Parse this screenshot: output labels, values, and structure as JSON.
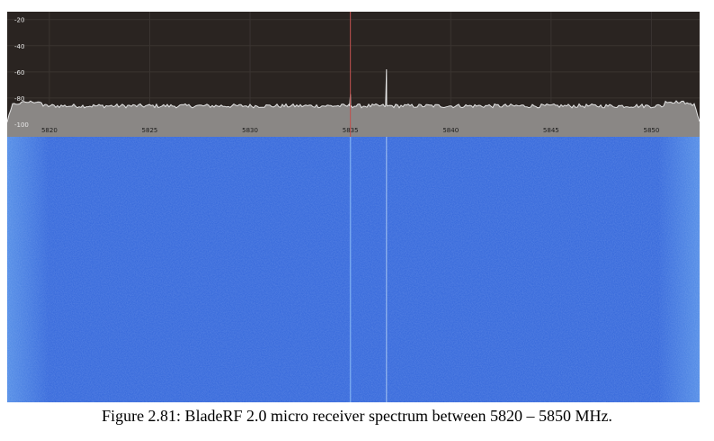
{
  "caption": "Figure 2.81: BladeRF 2.0 micro receiver spectrum between 5820 – 5850 MHz.",
  "spectrum": {
    "db_axis": {
      "ticks": [
        "-20",
        "-40",
        "-60",
        "-80",
        "-100"
      ],
      "range": [
        -100,
        -14
      ]
    },
    "freq_axis": {
      "ticks": [
        "5820",
        "5825",
        "5830",
        "5835",
        "5840",
        "5845",
        "5850"
      ],
      "range_mhz": [
        5817.9,
        5852.4
      ]
    },
    "noise_floor_db": -86,
    "markers": [
      {
        "freq_mhz": 5835.0,
        "color": "#c0504d"
      }
    ],
    "peaks": [
      {
        "freq_mhz": 5835.0,
        "level_db": -77
      },
      {
        "freq_mhz": 5836.8,
        "level_db": -58
      }
    ],
    "colors": {
      "background": "#2a2421",
      "filled_area": "#8a8785",
      "trace": "#e4e4e4",
      "grid": "#3a3431",
      "tick_label": "#e8e8e8"
    }
  },
  "waterfall": {
    "colors": {
      "base": "#2f63d9",
      "edge": "#4f8ae5"
    },
    "vertical_lines_mhz": [
      5835.0,
      5836.8
    ]
  }
}
